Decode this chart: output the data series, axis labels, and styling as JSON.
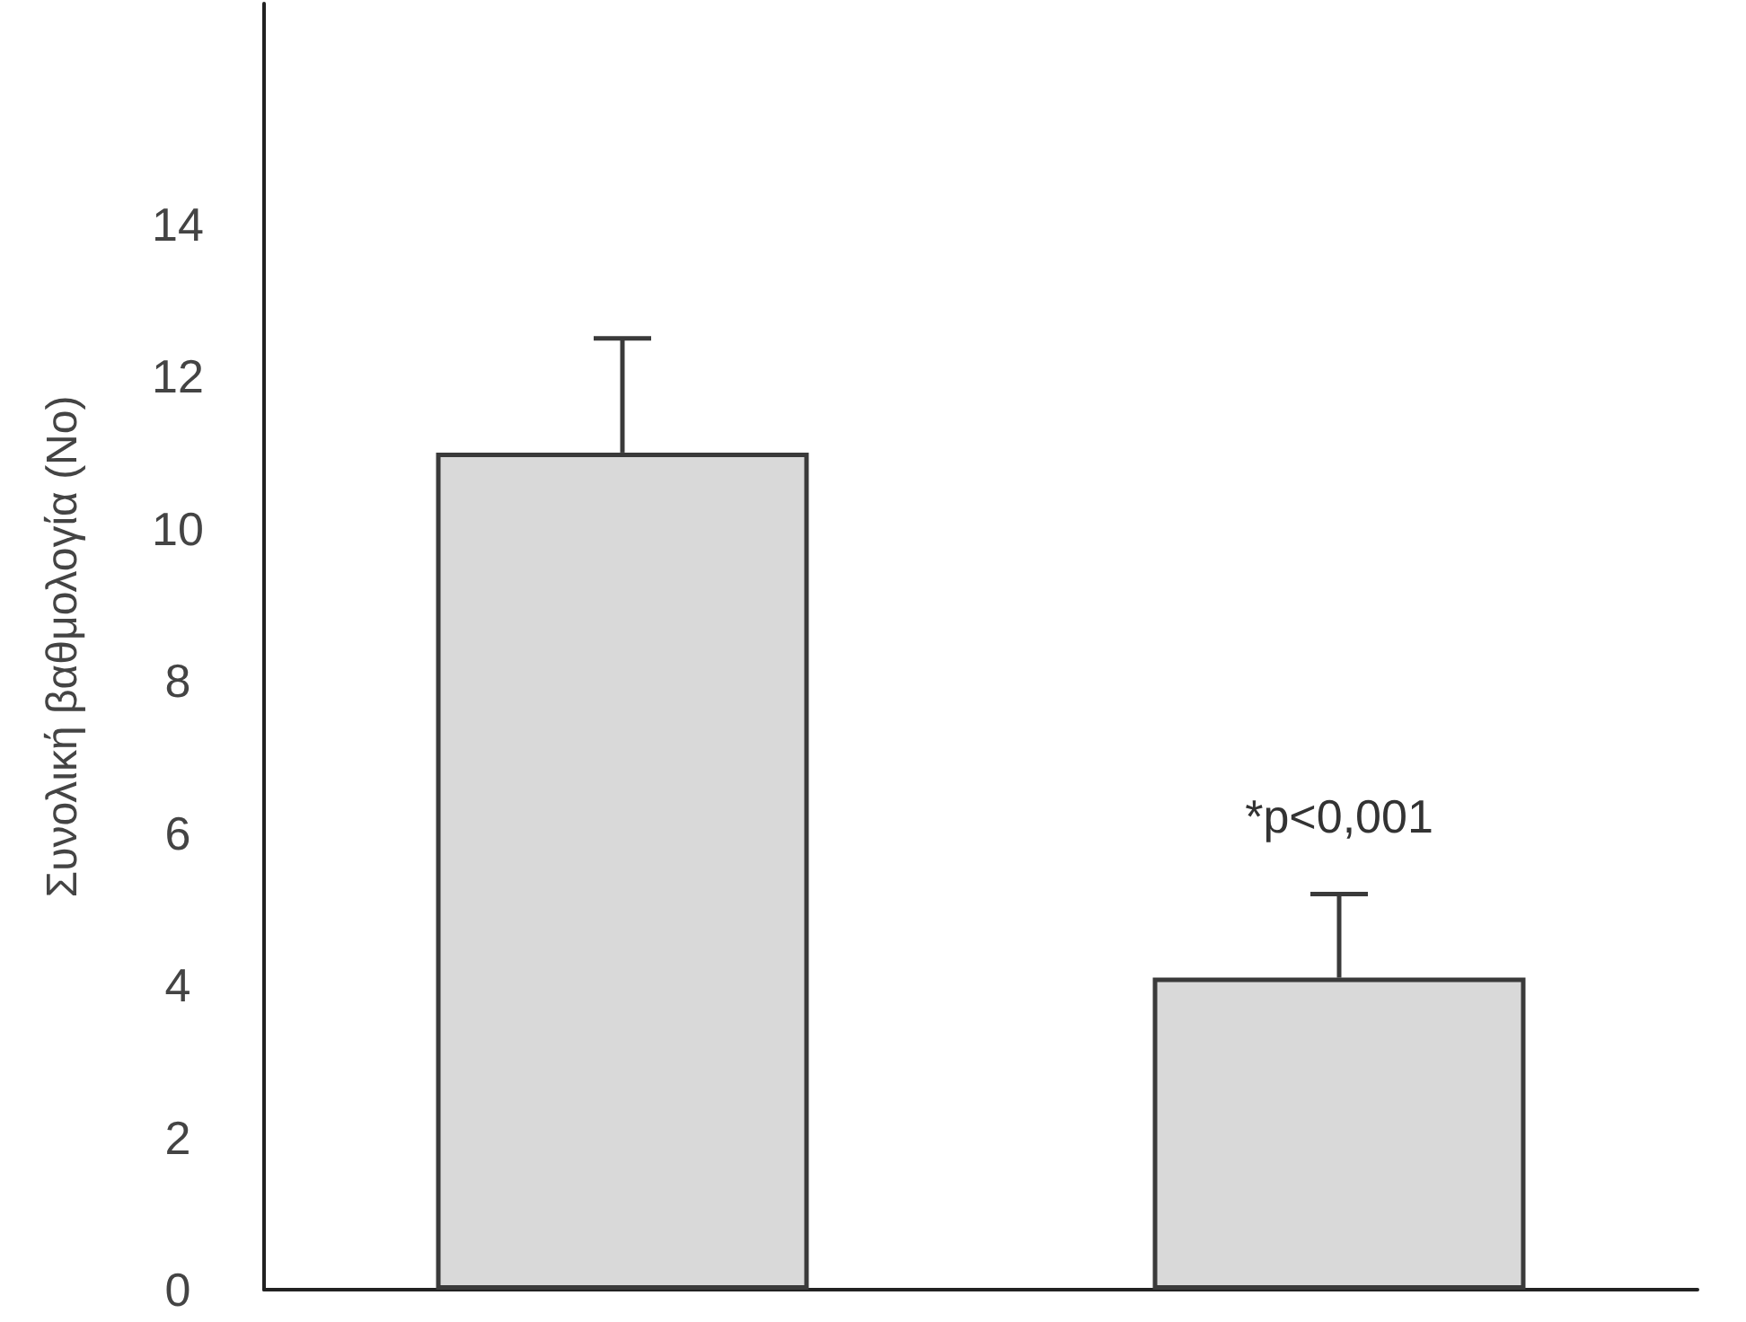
{
  "chart_data": {
    "type": "bar",
    "ylabel": "Συνολική βαθμολογία (Nο)",
    "categories": [
      null,
      null
    ],
    "values": [
      11,
      4.1
    ],
    "color": "#d9d9d9",
    "errors": [
      [
        11,
        12.5
      ],
      [
        4.1,
        5.2
      ]
    ],
    "ylim": [
      0,
      16.9
    ],
    "yticks": [
      0,
      2,
      4,
      6,
      8,
      10,
      12,
      14
    ],
    "grid": false,
    "annotations": [
      "*p<0,001"
    ]
  }
}
